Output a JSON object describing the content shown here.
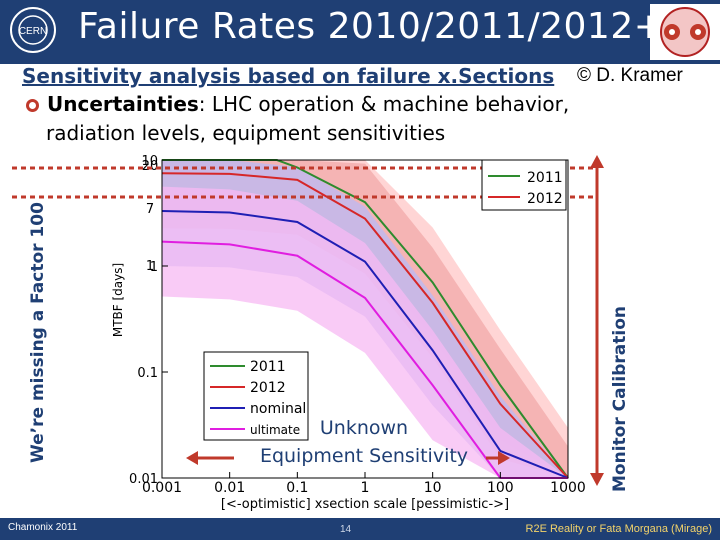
{
  "header": {
    "title": "Failure Rates 2010/2011/2012++",
    "logo_icon": "cern-logo-icon",
    "corner_icon": "lhc-beam-crosssection-icon",
    "bg_color": "#1f3f74"
  },
  "slide": {
    "subtitle": "Sensitivity analysis based on failure x.Sections",
    "credit": "© D. Kramer",
    "bullet_label": "Uncertainties",
    "bullet_rest": ": LHC operation & machine behavior,",
    "bullet_line2": "radiation levels, equipment sensitivities",
    "left_label": "We’re missing a Factor 100",
    "right_label": "Monitor Calibration",
    "unknown_line1": "Unknown",
    "unknown_line2": "Equipment Sensitivity"
  },
  "footer": {
    "left": "Chamonix 2011",
    "page": "14",
    "right": "R2E Reality or Fata Morgana (Mirage)"
  },
  "chart_data": {
    "type": "line",
    "title": "",
    "xlabel": "[<-optimistic] xsection scale [pessimistic->]",
    "ylabel": "MTBF [days]",
    "x_scale": "log",
    "y_scale": "log",
    "xlim": [
      0.001,
      1000
    ],
    "ylim": [
      0.01,
      10
    ],
    "x_ticks": [
      "0.001",
      "0.01",
      "0.1",
      "1",
      "10",
      "100",
      "1000"
    ],
    "y_ticks": [
      "0.01",
      "0.1",
      "1",
      "10"
    ],
    "y_extra_labels": [
      "20",
      "7",
      "1"
    ],
    "legend_top": [
      "2011",
      "2012"
    ],
    "series": [
      {
        "name": "2011",
        "color": "#2e8b2e",
        "band": "#ffc7c7",
        "x": [
          0.001,
          0.01,
          0.05,
          0.1,
          1,
          10,
          100,
          1000
        ],
        "y": [
          10,
          10,
          10,
          8.5,
          4,
          0.7,
          0.075,
          0.009
        ]
      },
      {
        "name": "2012",
        "color": "#d62728",
        "band": "#f2a8a8",
        "x": [
          0.001,
          0.01,
          0.1,
          1,
          10,
          100,
          1000
        ],
        "y": [
          7.5,
          7.4,
          6.5,
          2.8,
          0.45,
          0.05,
          0.006
        ]
      },
      {
        "name": "nominal",
        "color": "#1f1fb4",
        "band": "#b9b9f5",
        "x": [
          0.001,
          0.01,
          0.1,
          1,
          10,
          100,
          1000
        ],
        "y": [
          3.3,
          3.2,
          2.6,
          1.1,
          0.16,
          0.018,
          0.0023
        ]
      },
      {
        "name": "ultimate",
        "color": "#e01ee0",
        "band": "#f7b9f3",
        "x": [
          0.001,
          0.01,
          0.1,
          1,
          10,
          100,
          1000
        ],
        "y": [
          1.7,
          1.6,
          1.25,
          0.5,
          0.075,
          0.009,
          0.0011
        ]
      }
    ],
    "band_factor": 3.3,
    "reference_lines": [
      {
        "label": "20",
        "y": 20
      },
      {
        "label": "7",
        "y": 7
      }
    ],
    "grid": false,
    "legend_position": "bottom-left"
  }
}
